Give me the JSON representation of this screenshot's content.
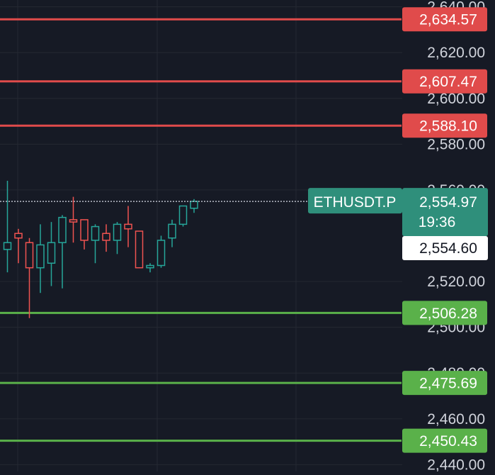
{
  "chart_data": {
    "type": "candlestick",
    "symbol": "ETHUSDT.P",
    "last_price": "2,554.97",
    "countdown": "19:36",
    "crosshair_price": "2,554.60",
    "ylim": [
      2437,
      2643
    ],
    "grid": true,
    "colors": {
      "background": "#161a25",
      "grid": "#242832",
      "axis_text": "#d1d4dc",
      "up": "#26a69a",
      "down": "#ef5350",
      "resistance": "#e04b4b",
      "support": "#5ab14a",
      "symbol_badge": "#2f8f7b"
    },
    "price_ticks": [
      {
        "value": 2640,
        "label": "2,640.00"
      },
      {
        "value": 2620,
        "label": "2,620.00"
      },
      {
        "value": 2600,
        "label": "2,600.00"
      },
      {
        "value": 2580,
        "label": "2,580.00"
      },
      {
        "value": 2560,
        "label": "2,560.00"
      },
      {
        "value": 2520,
        "label": "2,520.00"
      },
      {
        "value": 2500,
        "label": "2,500.00"
      },
      {
        "value": 2480,
        "label": "2,480.00"
      },
      {
        "value": 2460,
        "label": "2,460.00"
      },
      {
        "value": 2440,
        "label": "2,440.00"
      }
    ],
    "levels": [
      {
        "kind": "resistance",
        "value": 2634.57,
        "label": "2,634.57"
      },
      {
        "kind": "resistance",
        "value": 2607.47,
        "label": "2,607.47"
      },
      {
        "kind": "resistance",
        "value": 2588.1,
        "label": "2,588.10"
      },
      {
        "kind": "support",
        "value": 2506.28,
        "label": "2,506.28"
      },
      {
        "kind": "support",
        "value": 2475.69,
        "label": "2,475.69"
      },
      {
        "kind": "support",
        "value": 2450.43,
        "label": "2,450.43"
      }
    ],
    "candles": [
      {
        "o": 2534,
        "h": 2564,
        "l": 2524,
        "c": 2537
      },
      {
        "o": 2541,
        "h": 2543,
        "l": 2528,
        "c": 2539
      },
      {
        "o": 2537,
        "h": 2539,
        "l": 2504,
        "c": 2526
      },
      {
        "o": 2526,
        "h": 2545,
        "l": 2515,
        "c": 2536
      },
      {
        "o": 2528,
        "h": 2546,
        "l": 2518,
        "c": 2537
      },
      {
        "o": 2537,
        "h": 2549,
        "l": 2517,
        "c": 2548
      },
      {
        "o": 2547,
        "h": 2557,
        "l": 2537,
        "c": 2546
      },
      {
        "o": 2547,
        "h": 2547,
        "l": 2534,
        "c": 2538
      },
      {
        "o": 2538,
        "h": 2545,
        "l": 2528,
        "c": 2544
      },
      {
        "o": 2541,
        "h": 2545,
        "l": 2533,
        "c": 2538
      },
      {
        "o": 2538,
        "h": 2546,
        "l": 2532,
        "c": 2545
      },
      {
        "o": 2545,
        "h": 2553,
        "l": 2535,
        "c": 2543
      },
      {
        "o": 2542,
        "h": 2542,
        "l": 2528,
        "c": 2526
      },
      {
        "o": 2526,
        "h": 2528,
        "l": 2524,
        "c": 2527
      },
      {
        "o": 2527,
        "h": 2540,
        "l": 2526,
        "c": 2538
      },
      {
        "o": 2539,
        "h": 2547,
        "l": 2535,
        "c": 2545
      },
      {
        "o": 2545,
        "h": 2553,
        "l": 2544,
        "c": 2553
      },
      {
        "o": 2552,
        "h": 2556,
        "l": 2550,
        "c": 2555
      }
    ]
  }
}
